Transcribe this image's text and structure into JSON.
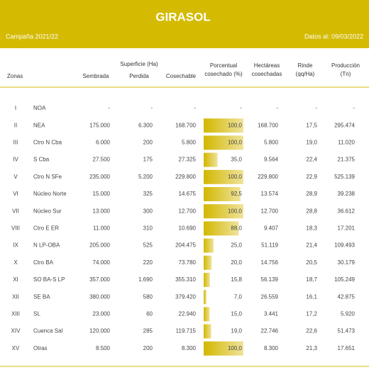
{
  "header": {
    "title": "GIRASOL",
    "campaign": "Campaña 2021/22",
    "date": "Datos al: 09/03/2022"
  },
  "table": {
    "zonas_label": "Zonas",
    "group_label": "Superficie (Ha)",
    "columns": [
      [
        "Sembrada"
      ],
      [
        "Perdida"
      ],
      [
        "Cosechable"
      ],
      [
        "Porcentual",
        "cosechado (%)"
      ],
      [
        "Hectáreas",
        "cosechadas"
      ],
      [
        "Rinde",
        "(qq/Ha)"
      ],
      [
        "Producción",
        "(Tn)"
      ]
    ],
    "porcentual_range": [
      0,
      100
    ],
    "rows": [
      {
        "num": "I",
        "zona": "NOA",
        "cells": [
          "-",
          "-",
          "-",
          "-",
          "-",
          "-",
          "-"
        ],
        "porcentual": null
      },
      {
        "num": "II",
        "zona": "NEA",
        "cells": [
          "175.000",
          "6.300",
          "168.700",
          "100,0",
          "168.700",
          "17,5",
          "295.474"
        ],
        "porcentual": 100
      },
      {
        "num": "III",
        "zona": "Ctro N Cba",
        "cells": [
          "6.000",
          "200",
          "5.800",
          "100,0",
          "5.800",
          "19,0",
          "11.020"
        ],
        "porcentual": 100
      },
      {
        "num": "IV",
        "zona": "S Cba",
        "cells": [
          "27.500",
          "175",
          "27.325",
          "35,0",
          "9.564",
          "22,4",
          "21.375"
        ],
        "porcentual": 35
      },
      {
        "num": "V",
        "zona": "Ctro N SFe",
        "cells": [
          "235.000",
          "5.200",
          "229.800",
          "100,0",
          "229.800",
          "22,9",
          "525.139"
        ],
        "porcentual": 100
      },
      {
        "num": "VI",
        "zona": "Núcleo Norte",
        "cells": [
          "15.000",
          "325",
          "14.675",
          "92,5",
          "13.574",
          "28,9",
          "39.238"
        ],
        "porcentual": 92.5
      },
      {
        "num": "VII",
        "zona": "Núcleo Sur",
        "cells": [
          "13.000",
          "300",
          "12.700",
          "100,0",
          "12.700",
          "28,8",
          "36.612"
        ],
        "porcentual": 100
      },
      {
        "num": "VIII",
        "zona": "Ctro E ER",
        "cells": [
          "11.000",
          "310",
          "10.690",
          "88,0",
          "9.407",
          "18,3",
          "17.201"
        ],
        "porcentual": 88
      },
      {
        "num": "IX",
        "zona": "N LP-OBA",
        "cells": [
          "205.000",
          "525",
          "204.475",
          "25,0",
          "51.119",
          "21,4",
          "109.493"
        ],
        "porcentual": 25
      },
      {
        "num": "X",
        "zona": "Ctro BA",
        "cells": [
          "74.000",
          "220",
          "73.780",
          "20,0",
          "14.756",
          "20,5",
          "30.179"
        ],
        "porcentual": 20
      },
      {
        "num": "XI",
        "zona": "SO BA-S LP",
        "cells": [
          "357.000",
          "1.690",
          "355.310",
          "15,8",
          "56.139",
          "18,7",
          "105.249"
        ],
        "porcentual": 15.8
      },
      {
        "num": "XII",
        "zona": "SE BA",
        "cells": [
          "380.000",
          "580",
          "379.420",
          "7,0",
          "26.559",
          "16,1",
          "42.875"
        ],
        "porcentual": 7
      },
      {
        "num": "XIII",
        "zona": "SL",
        "cells": [
          "23.000",
          "60",
          "22.940",
          "15,0",
          "3.441",
          "17,2",
          "5.920"
        ],
        "porcentual": 15
      },
      {
        "num": "XIV",
        "zona": "Cuenca Sal",
        "cells": [
          "120.000",
          "285",
          "119.715",
          "19,0",
          "22.746",
          "22,6",
          "51.473"
        ],
        "porcentual": 19
      },
      {
        "num": "XV",
        "zona": "Otras",
        "cells": [
          "8.500",
          "200",
          "8.300",
          "100,0",
          "8.300",
          "21,3",
          "17.651"
        ],
        "porcentual": 100
      }
    ]
  }
}
